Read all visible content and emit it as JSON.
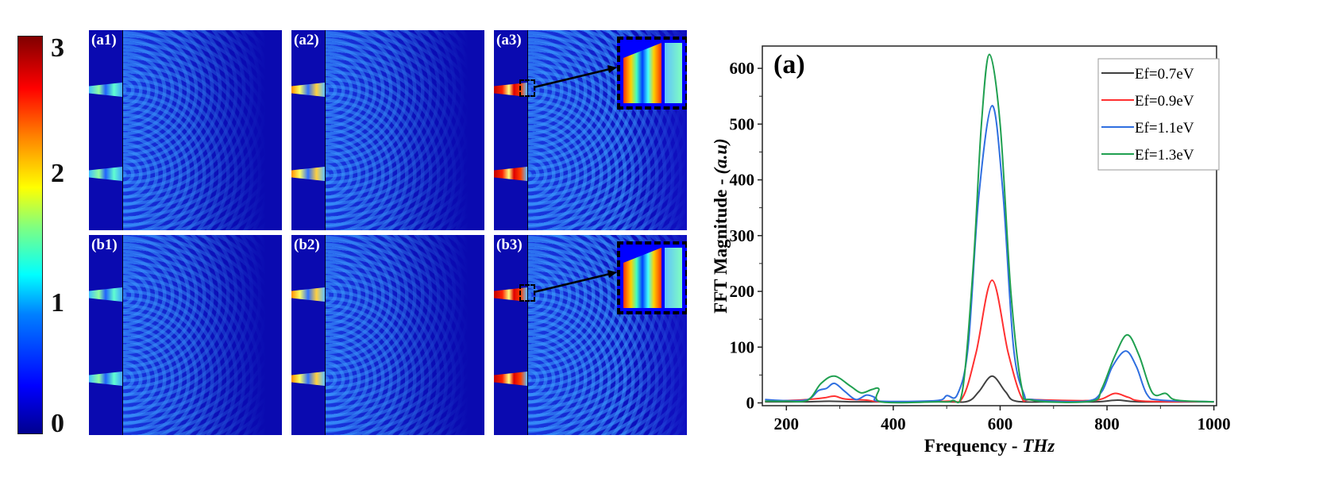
{
  "colorbar": {
    "ticks": [
      "3",
      "2",
      "1",
      "0"
    ],
    "range": [
      0,
      3
    ],
    "colormap": "jet"
  },
  "panels": [
    {
      "label": "(a1)",
      "intensity": "low"
    },
    {
      "label": "(a2)",
      "intensity": "medium"
    },
    {
      "label": "(a3)",
      "intensity": "high"
    },
    {
      "label": "(b1)",
      "intensity": "low"
    },
    {
      "label": "(b2)",
      "intensity": "medium"
    },
    {
      "label": "(b3)",
      "intensity": "high"
    }
  ],
  "chart_data": {
    "type": "line",
    "panel_label": "(a)",
    "xlabel": "Frequency - ",
    "xlabel_unit": "THz",
    "ylabel": "FFT Magnitude - ",
    "ylabel_unit": "(a.u)",
    "xlim": [
      155,
      1005
    ],
    "ylim": [
      -5,
      640
    ],
    "xticks": [
      "200",
      "400",
      "600",
      "800",
      "1000"
    ],
    "yticks": [
      "0",
      "100",
      "200",
      "300",
      "400",
      "500",
      "600"
    ],
    "legend_position": "top-right",
    "grid": false,
    "series": [
      {
        "name": "Ef=0.7eV",
        "color": "#404040",
        "points": [
          [
            160,
            2
          ],
          [
            200,
            2
          ],
          [
            240,
            2
          ],
          [
            280,
            3
          ],
          [
            320,
            2
          ],
          [
            400,
            2
          ],
          [
            500,
            2
          ],
          [
            540,
            3
          ],
          [
            560,
            20
          ],
          [
            585,
            48
          ],
          [
            610,
            20
          ],
          [
            630,
            3
          ],
          [
            700,
            2
          ],
          [
            780,
            2
          ],
          [
            820,
            5
          ],
          [
            860,
            2
          ],
          [
            1000,
            2
          ]
        ]
      },
      {
        "name": "Ef=0.9eV",
        "color": "#ff3030",
        "points": [
          [
            160,
            3
          ],
          [
            200,
            4
          ],
          [
            240,
            6
          ],
          [
            270,
            9
          ],
          [
            290,
            12
          ],
          [
            310,
            7
          ],
          [
            350,
            5
          ],
          [
            380,
            2
          ],
          [
            500,
            3
          ],
          [
            530,
            10
          ],
          [
            555,
            90
          ],
          [
            585,
            220
          ],
          [
            615,
            90
          ],
          [
            640,
            10
          ],
          [
            660,
            6
          ],
          [
            760,
            4
          ],
          [
            790,
            7
          ],
          [
            815,
            17
          ],
          [
            840,
            10
          ],
          [
            870,
            3
          ],
          [
            1000,
            2
          ]
        ]
      },
      {
        "name": "Ef=1.1eV",
        "color": "#2f6fe0",
        "points": [
          [
            160,
            6
          ],
          [
            200,
            4
          ],
          [
            240,
            6
          ],
          [
            260,
            22
          ],
          [
            275,
            26
          ],
          [
            290,
            35
          ],
          [
            310,
            20
          ],
          [
            330,
            6
          ],
          [
            350,
            14
          ],
          [
            365,
            10
          ],
          [
            375,
            3
          ],
          [
            480,
            4
          ],
          [
            500,
            13
          ],
          [
            520,
            15
          ],
          [
            540,
            100
          ],
          [
            560,
            370
          ],
          [
            585,
            533
          ],
          [
            605,
            380
          ],
          [
            625,
            100
          ],
          [
            645,
            15
          ],
          [
            660,
            6
          ],
          [
            760,
            3
          ],
          [
            790,
            20
          ],
          [
            810,
            65
          ],
          [
            835,
            93
          ],
          [
            855,
            65
          ],
          [
            875,
            15
          ],
          [
            900,
            5
          ],
          [
            1000,
            2
          ]
        ]
      },
      {
        "name": "Ef=1.3eV",
        "color": "#20a050",
        "points": [
          [
            160,
            3
          ],
          [
            200,
            3
          ],
          [
            240,
            5
          ],
          [
            265,
            35
          ],
          [
            290,
            48
          ],
          [
            320,
            30
          ],
          [
            340,
            18
          ],
          [
            360,
            24
          ],
          [
            373,
            25
          ],
          [
            376,
            2
          ],
          [
            480,
            2
          ],
          [
            510,
            4
          ],
          [
            530,
            25
          ],
          [
            550,
            250
          ],
          [
            565,
            500
          ],
          [
            580,
            625
          ],
          [
            600,
            500
          ],
          [
            620,
            200
          ],
          [
            640,
            30
          ],
          [
            660,
            5
          ],
          [
            770,
            3
          ],
          [
            790,
            25
          ],
          [
            815,
            85
          ],
          [
            838,
            122
          ],
          [
            860,
            85
          ],
          [
            885,
            18
          ],
          [
            910,
            17
          ],
          [
            930,
            5
          ],
          [
            1000,
            2
          ]
        ]
      }
    ]
  }
}
